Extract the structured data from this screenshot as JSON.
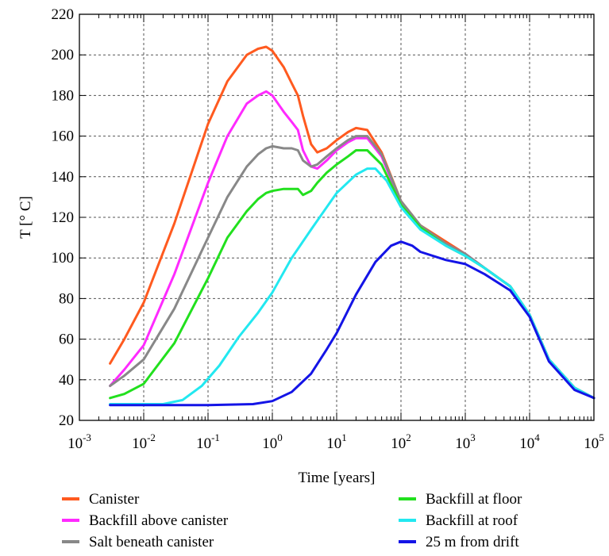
{
  "chart_data": {
    "type": "line",
    "title": "",
    "xlabel": "Time [years]",
    "ylabel": "T [° C]",
    "xscale": "log",
    "xlim": [
      0.001,
      100000
    ],
    "ylim": [
      20,
      220
    ],
    "grid": true,
    "legend_placement": "bottom",
    "x_ticks": [
      {
        "base": "10",
        "exp": "-3"
      },
      {
        "base": "10",
        "exp": "-2"
      },
      {
        "base": "10",
        "exp": "-1"
      },
      {
        "base": "10",
        "exp": "0"
      },
      {
        "base": "10",
        "exp": "1"
      },
      {
        "base": "10",
        "exp": "2"
      },
      {
        "base": "10",
        "exp": "3"
      },
      {
        "base": "10",
        "exp": "4"
      },
      {
        "base": "10",
        "exp": "5"
      }
    ],
    "y_ticks": [
      "20",
      "40",
      "60",
      "80",
      "100",
      "120",
      "140",
      "160",
      "180",
      "200",
      "220"
    ],
    "series": [
      {
        "name": "Canister",
        "color": "#ff5a1f",
        "points": [
          [
            0.003,
            48
          ],
          [
            0.005,
            60
          ],
          [
            0.01,
            78
          ],
          [
            0.03,
            117
          ],
          [
            0.1,
            166
          ],
          [
            0.2,
            187
          ],
          [
            0.4,
            200
          ],
          [
            0.6,
            203
          ],
          [
            0.8,
            204
          ],
          [
            1.0,
            202
          ],
          [
            1.5,
            194
          ],
          [
            2.0,
            186
          ],
          [
            2.5,
            180
          ],
          [
            3.0,
            170
          ],
          [
            4.0,
            156
          ],
          [
            5.0,
            152
          ],
          [
            7.0,
            154
          ],
          [
            10,
            158
          ],
          [
            15,
            162
          ],
          [
            20,
            164
          ],
          [
            30,
            163
          ],
          [
            50,
            152
          ],
          [
            100,
            128
          ],
          [
            200,
            116
          ],
          [
            500,
            108
          ],
          [
            1000,
            102
          ],
          [
            2000,
            95
          ],
          [
            5000,
            86
          ],
          [
            10000,
            72
          ],
          [
            20000,
            50
          ],
          [
            50000,
            36
          ],
          [
            100000,
            31
          ]
        ]
      },
      {
        "name": "Backfill above canister",
        "color": "#ff2aff",
        "points": [
          [
            0.003,
            37
          ],
          [
            0.005,
            45
          ],
          [
            0.01,
            57
          ],
          [
            0.03,
            92
          ],
          [
            0.1,
            137
          ],
          [
            0.2,
            160
          ],
          [
            0.4,
            176
          ],
          [
            0.6,
            180
          ],
          [
            0.8,
            182
          ],
          [
            1.0,
            180
          ],
          [
            1.5,
            172
          ],
          [
            2.0,
            167
          ],
          [
            2.5,
            163
          ],
          [
            3.0,
            153
          ],
          [
            4.0,
            145
          ],
          [
            5.0,
            144
          ],
          [
            7.0,
            148
          ],
          [
            10,
            153
          ],
          [
            15,
            157
          ],
          [
            20,
            159
          ],
          [
            30,
            159
          ],
          [
            50,
            150
          ],
          [
            100,
            127
          ],
          [
            200,
            115
          ],
          [
            500,
            107
          ],
          [
            1000,
            102
          ],
          [
            2000,
            95
          ],
          [
            5000,
            86
          ],
          [
            10000,
            72
          ],
          [
            20000,
            50
          ],
          [
            50000,
            36
          ],
          [
            100000,
            31
          ]
        ]
      },
      {
        "name": "Salt beneath canister",
        "color": "#888888",
        "points": [
          [
            0.003,
            37
          ],
          [
            0.005,
            42
          ],
          [
            0.01,
            50
          ],
          [
            0.03,
            75
          ],
          [
            0.1,
            110
          ],
          [
            0.2,
            130
          ],
          [
            0.4,
            145
          ],
          [
            0.6,
            151
          ],
          [
            0.8,
            154
          ],
          [
            1.0,
            155
          ],
          [
            1.5,
            154
          ],
          [
            2.0,
            154
          ],
          [
            2.5,
            153
          ],
          [
            3.0,
            148
          ],
          [
            4.0,
            145
          ],
          [
            5.0,
            146
          ],
          [
            7.0,
            150
          ],
          [
            10,
            154
          ],
          [
            15,
            158
          ],
          [
            20,
            160
          ],
          [
            30,
            160
          ],
          [
            50,
            151
          ],
          [
            100,
            128
          ],
          [
            200,
            116
          ],
          [
            500,
            107
          ],
          [
            1000,
            102
          ],
          [
            2000,
            95
          ],
          [
            5000,
            86
          ],
          [
            10000,
            72
          ],
          [
            20000,
            50
          ],
          [
            50000,
            36
          ],
          [
            100000,
            31
          ]
        ]
      },
      {
        "name": "Backfill at floor",
        "color": "#22e01e",
        "points": [
          [
            0.003,
            31
          ],
          [
            0.005,
            33
          ],
          [
            0.01,
            38
          ],
          [
            0.03,
            58
          ],
          [
            0.1,
            90
          ],
          [
            0.2,
            110
          ],
          [
            0.4,
            123
          ],
          [
            0.6,
            129
          ],
          [
            0.8,
            132
          ],
          [
            1.0,
            133
          ],
          [
            1.5,
            134
          ],
          [
            2.0,
            134
          ],
          [
            2.5,
            134
          ],
          [
            3.0,
            131
          ],
          [
            4.0,
            133
          ],
          [
            5.0,
            137
          ],
          [
            7.0,
            142
          ],
          [
            10,
            146
          ],
          [
            15,
            150
          ],
          [
            20,
            153
          ],
          [
            30,
            153
          ],
          [
            50,
            146
          ],
          [
            100,
            126
          ],
          [
            200,
            115
          ],
          [
            500,
            106
          ],
          [
            1000,
            101
          ],
          [
            2000,
            95
          ],
          [
            5000,
            86
          ],
          [
            10000,
            72
          ],
          [
            20000,
            50
          ],
          [
            50000,
            36
          ],
          [
            100000,
            31
          ]
        ]
      },
      {
        "name": "Backfill at roof",
        "color": "#22e8f0",
        "points": [
          [
            0.003,
            28
          ],
          [
            0.01,
            28
          ],
          [
            0.02,
            28
          ],
          [
            0.04,
            30
          ],
          [
            0.08,
            37
          ],
          [
            0.15,
            47
          ],
          [
            0.3,
            61
          ],
          [
            0.6,
            73
          ],
          [
            1.0,
            83
          ],
          [
            2.0,
            100
          ],
          [
            4.0,
            114
          ],
          [
            7.0,
            125
          ],
          [
            10,
            132
          ],
          [
            20,
            141
          ],
          [
            30,
            144
          ],
          [
            40,
            144
          ],
          [
            60,
            138
          ],
          [
            100,
            125
          ],
          [
            200,
            114
          ],
          [
            500,
            106
          ],
          [
            1000,
            101
          ],
          [
            2000,
            95
          ],
          [
            5000,
            86
          ],
          [
            10000,
            72
          ],
          [
            20000,
            50
          ],
          [
            50000,
            36
          ],
          [
            100000,
            31
          ]
        ]
      },
      {
        "name": "25 m from drift",
        "color": "#1414e6",
        "points": [
          [
            0.003,
            27.5
          ],
          [
            0.1,
            27.5
          ],
          [
            0.5,
            28
          ],
          [
            1.0,
            29.5
          ],
          [
            2.0,
            34
          ],
          [
            4.0,
            43
          ],
          [
            7.0,
            55
          ],
          [
            10,
            63
          ],
          [
            20,
            82
          ],
          [
            40,
            98
          ],
          [
            70,
            106
          ],
          [
            100,
            108
          ],
          [
            150,
            106
          ],
          [
            200,
            103
          ],
          [
            500,
            99
          ],
          [
            1000,
            97
          ],
          [
            2000,
            92
          ],
          [
            5000,
            84
          ],
          [
            10000,
            71
          ],
          [
            20000,
            49
          ],
          [
            50000,
            35
          ],
          [
            100000,
            31
          ]
        ]
      }
    ]
  }
}
